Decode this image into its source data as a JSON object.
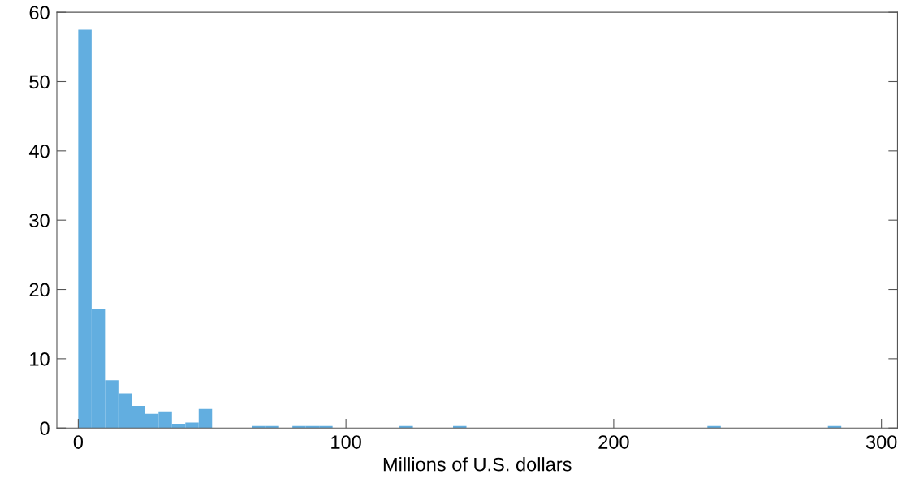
{
  "chart_data": {
    "type": "histogram",
    "xlabel": "Millions of U.S. dollars",
    "bins": [
      0,
      5,
      10,
      15,
      20,
      25,
      30,
      35,
      40,
      45,
      50,
      55,
      60,
      65,
      70,
      75,
      80,
      85,
      90,
      95,
      100,
      105,
      110,
      115,
      120,
      125,
      130,
      135,
      140,
      145,
      150,
      155,
      160,
      165,
      170,
      175,
      180,
      185,
      190,
      195,
      200,
      205,
      210,
      215,
      220,
      225,
      230,
      235,
      240,
      245,
      250,
      255,
      260,
      265,
      270,
      275,
      280,
      285
    ],
    "values": [
      57.5,
      17.2,
      6.9,
      5.0,
      3.2,
      2.05,
      2.4,
      0.6,
      0.8,
      2.75,
      0,
      0,
      0,
      0.3,
      0.3,
      0,
      0.3,
      0.3,
      0.3,
      0,
      0,
      0,
      0,
      0,
      0.3,
      0,
      0,
      0,
      0.3,
      0,
      0,
      0,
      0,
      0,
      0,
      0,
      0,
      0,
      0,
      0,
      0,
      0,
      0,
      0,
      0,
      0,
      0,
      0.3,
      0,
      0,
      0,
      0,
      0,
      0,
      0,
      0,
      0.3
    ],
    "color": "#62aee0",
    "xlim": [
      -8,
      306
    ],
    "xticks": [
      0,
      100,
      200,
      300
    ],
    "ylim": [
      0,
      60
    ],
    "yticks": [
      0,
      10,
      20,
      30,
      40,
      50,
      60
    ],
    "grid": false
  }
}
